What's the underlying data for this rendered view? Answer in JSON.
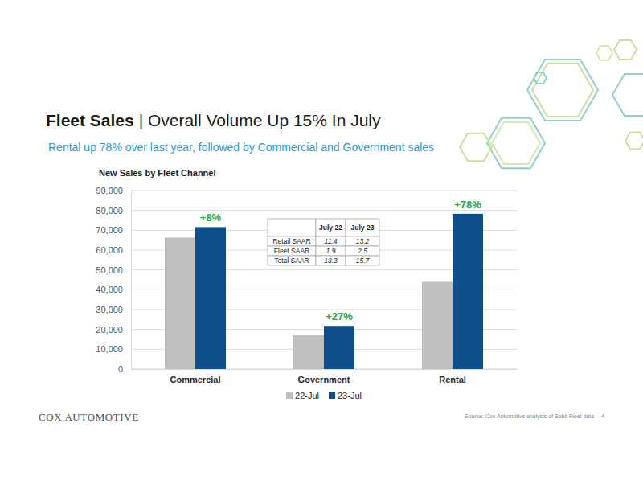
{
  "header": {
    "title": [
      "Fleet Sales",
      "| Overall Volume Up 15% In July"
    ],
    "subtitle": "Rental up 78% over last year, followed by Commercial and Government sales"
  },
  "chart_data": {
    "type": "bar",
    "title": "New Sales by Fleet Channel",
    "categories": [
      "Commercial",
      "Government",
      "Rental"
    ],
    "series": [
      {
        "name": "22-Jul",
        "color": "#bfbfbf",
        "values": [
          66300,
          17200,
          44000
        ]
      },
      {
        "name": "23-Jul",
        "color": "#0e4f8b",
        "values": [
          71600,
          21800,
          78300
        ]
      }
    ],
    "ylim": [
      0,
      90000
    ],
    "yticks": [
      0,
      {
        "value": 10000,
        "label": "10,000"
      },
      {
        "value": 20000,
        "label": "20,000"
      },
      {
        "value": 30000,
        "label": "30,000"
      },
      {
        "value": 40000,
        "label": "40,000"
      },
      {
        "value": 50000,
        "label": "50,000"
      },
      {
        "value": 60000,
        "label": "60,000"
      },
      {
        "value": 70000,
        "label": "70,000"
      },
      {
        "value": 80000,
        "label": "80,000"
      },
      {
        "value": 90000,
        "label": "90,000"
      }
    ],
    "grid": true,
    "legend": "bottom",
    "annotations": [
      {
        "text": "+8%",
        "category": "Commercial",
        "series": "23-Jul"
      },
      {
        "text": "+27%",
        "category": "Government",
        "series": "23-Jul"
      },
      {
        "text": "+78%",
        "category": "Rental",
        "series": "23-Jul"
      }
    ]
  },
  "table": {
    "columns": [
      "July 22",
      "July 23"
    ],
    "rows": [
      {
        "label": "Retail SAAR",
        "values": [
          11.4,
          13.2
        ]
      },
      {
        "label": "Fleet SAAR",
        "values": [
          1.9,
          2.5
        ]
      },
      {
        "label": "Total SAAR",
        "values": [
          13.3,
          15.7
        ]
      }
    ]
  },
  "footer": {
    "logo": "COX AUTOMOTIVE",
    "source": "Source: Cox Automotive analysis of Bobit Fleet data",
    "page": 4
  }
}
